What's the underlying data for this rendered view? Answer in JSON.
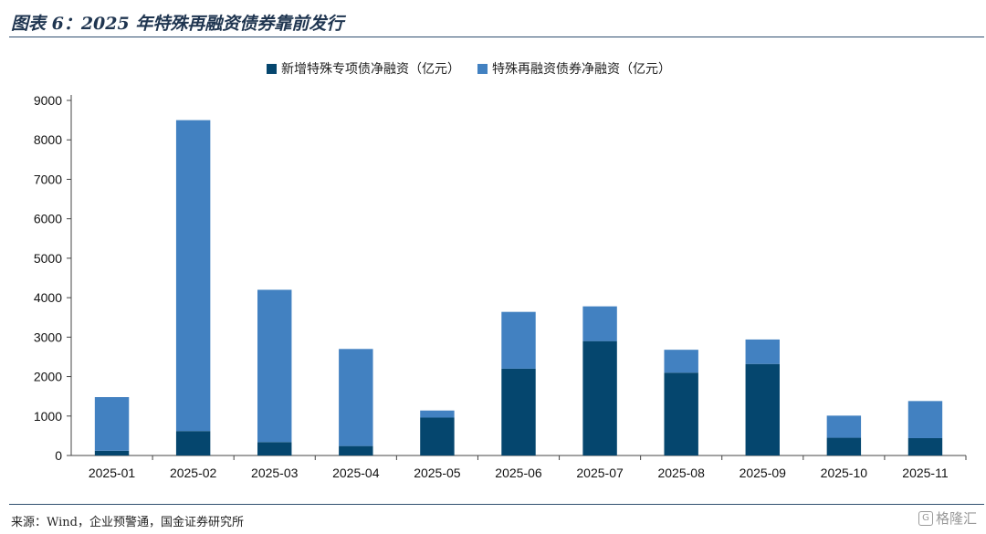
{
  "header": {
    "title": "图表 6：2025 年特殊再融资债券靠前发行"
  },
  "chart_data": {
    "type": "bar",
    "stacked": true,
    "categories": [
      "2025-01",
      "2025-02",
      "2025-03",
      "2025-04",
      "2025-05",
      "2025-06",
      "2025-07",
      "2025-08",
      "2025-09",
      "2025-10",
      "2025-11"
    ],
    "series": [
      {
        "name": "新增特殊专项债净融资（亿元）",
        "color": "#05466e",
        "values": [
          120,
          620,
          340,
          240,
          960,
          2200,
          2900,
          2100,
          2320,
          450,
          440
        ]
      },
      {
        "name": "特殊再融资债券净融资（亿元）",
        "color": "#4281c1",
        "values": [
          1360,
          7880,
          3860,
          2460,
          180,
          1440,
          880,
          580,
          620,
          560,
          940
        ]
      }
    ],
    "ylim": [
      0,
      9000
    ],
    "yticks": [
      0,
      1000,
      2000,
      3000,
      4000,
      5000,
      6000,
      7000,
      8000,
      9000
    ],
    "legend_position": "top-center",
    "grid": false
  },
  "footer": {
    "source": "来源：Wind，企业预警通，国金证券研究所",
    "watermark": "格隆汇"
  }
}
